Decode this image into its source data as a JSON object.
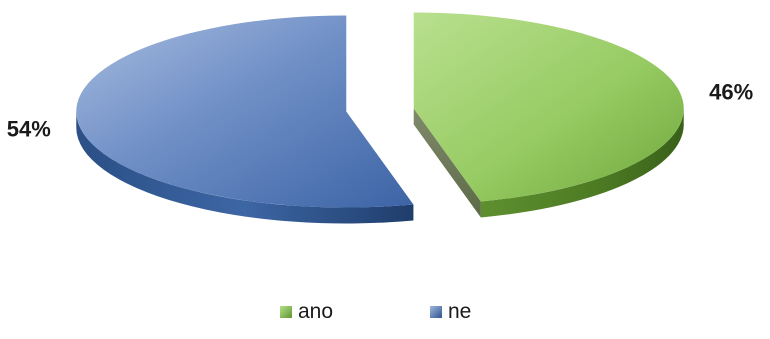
{
  "chart_data": {
    "type": "pie",
    "categories": [
      "ano",
      "ne"
    ],
    "values": [
      46,
      54
    ],
    "data_labels": [
      "46%",
      "54%"
    ],
    "colors": [
      "#8fc85a",
      "#3a64a3"
    ],
    "title": "",
    "legend_position": "bottom",
    "exploded": true,
    "style": "3d"
  },
  "legend": {
    "items": [
      {
        "label": "ano",
        "icon": "green-square-marker-icon",
        "color": "#8fc85a"
      },
      {
        "label": "ne",
        "icon": "blue-square-marker-icon",
        "color": "#3a64a3"
      }
    ]
  }
}
